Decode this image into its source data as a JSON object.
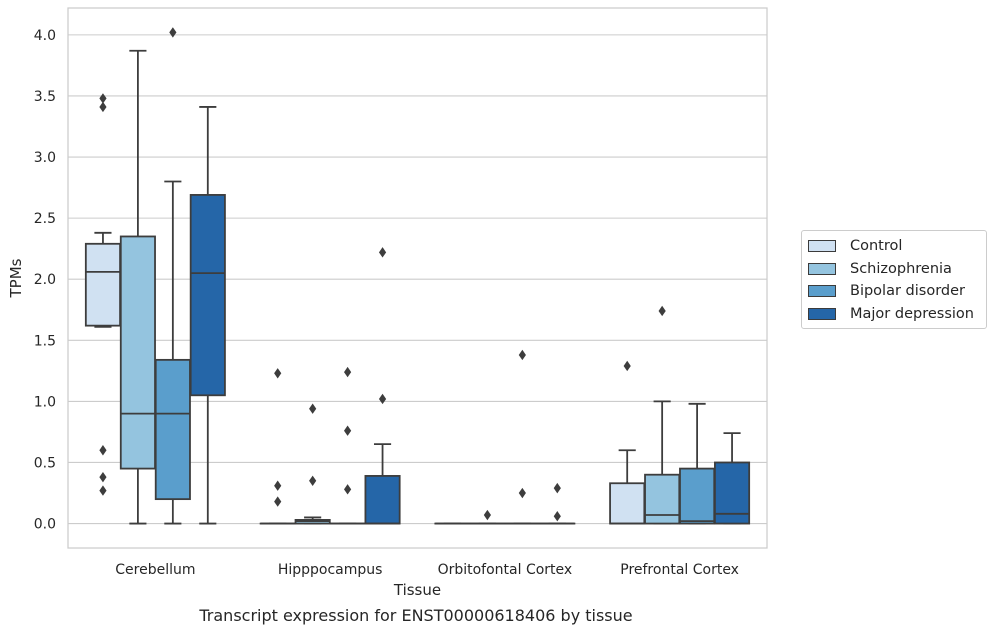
{
  "chart_data": {
    "type": "box",
    "title": "",
    "caption": "Transcript expression for ENST00000618406 by tissue",
    "xlabel": "Tissue",
    "ylabel": "TPMs",
    "ylim": [
      -0.2,
      4.22
    ],
    "yticks": [
      "0.0",
      "0.5",
      "1.0",
      "1.5",
      "2.0",
      "2.5",
      "3.0",
      "3.5",
      "4.0"
    ],
    "categories": [
      "Cerebellum",
      "Hipppocampus",
      "Orbitofontal Cortex",
      "Prefrontal Cortex"
    ],
    "grid": "horizontal",
    "legend_position": "right",
    "series": [
      {
        "name": "Control",
        "color": "#d0e1f2",
        "boxes": [
          {
            "whislo": 1.61,
            "q1": 1.62,
            "med": 2.06,
            "q3": 2.29,
            "whishi": 2.38,
            "fliers": [
              3.48,
              3.41,
              0.6,
              0.38,
              0.27
            ]
          },
          {
            "whislo": 0.0,
            "q1": 0.0,
            "med": 0.0,
            "q3": 0.0,
            "whishi": 0.0,
            "fliers": [
              1.23,
              0.31,
              0.18
            ]
          },
          {
            "whislo": 0.0,
            "q1": 0.0,
            "med": 0.0,
            "q3": 0.0,
            "whishi": 0.0,
            "fliers": []
          },
          {
            "whislo": 0.0,
            "q1": 0.0,
            "med": 0.0,
            "q3": 0.33,
            "whishi": 0.6,
            "fliers": [
              1.29
            ]
          }
        ]
      },
      {
        "name": "Schizophrenia",
        "color": "#94c4df",
        "boxes": [
          {
            "whislo": 0.0,
            "q1": 0.45,
            "med": 0.9,
            "q3": 2.35,
            "whishi": 3.87,
            "fliers": []
          },
          {
            "whislo": 0.0,
            "q1": 0.0,
            "med": 0.02,
            "q3": 0.03,
            "whishi": 0.05,
            "fliers": [
              0.94,
              0.35
            ]
          },
          {
            "whislo": 0.0,
            "q1": 0.0,
            "med": 0.0,
            "q3": 0.0,
            "whishi": 0.0,
            "fliers": [
              0.07
            ]
          },
          {
            "whislo": 0.0,
            "q1": 0.0,
            "med": 0.07,
            "q3": 0.4,
            "whishi": 1.0,
            "fliers": [
              1.74
            ]
          }
        ]
      },
      {
        "name": "Bipolar disorder",
        "color": "#5a9ecc",
        "boxes": [
          {
            "whislo": 0.0,
            "q1": 0.2,
            "med": 0.9,
            "q3": 1.34,
            "whishi": 2.8,
            "fliers": [
              4.02
            ]
          },
          {
            "whislo": 0.0,
            "q1": 0.0,
            "med": 0.0,
            "q3": 0.0,
            "whishi": 0.0,
            "fliers": [
              1.24,
              0.76,
              0.28
            ]
          },
          {
            "whislo": 0.0,
            "q1": 0.0,
            "med": 0.0,
            "q3": 0.0,
            "whishi": 0.0,
            "fliers": [
              1.38,
              0.25
            ]
          },
          {
            "whislo": 0.0,
            "q1": 0.0,
            "med": 0.02,
            "q3": 0.45,
            "whishi": 0.98,
            "fliers": []
          }
        ]
      },
      {
        "name": "Major depression",
        "color": "#2566a8",
        "boxes": [
          {
            "whislo": 0.0,
            "q1": 1.05,
            "med": 2.05,
            "q3": 2.69,
            "whishi": 3.41,
            "fliers": []
          },
          {
            "whislo": 0.0,
            "q1": 0.0,
            "med": 0.0,
            "q3": 0.39,
            "whishi": 0.65,
            "fliers": [
              2.22,
              1.02
            ]
          },
          {
            "whislo": 0.0,
            "q1": 0.0,
            "med": 0.0,
            "q3": 0.0,
            "whishi": 0.0,
            "fliers": [
              0.29,
              0.06
            ]
          },
          {
            "whislo": 0.0,
            "q1": 0.0,
            "med": 0.08,
            "q3": 0.5,
            "whishi": 0.74,
            "fliers": []
          }
        ]
      }
    ]
  }
}
